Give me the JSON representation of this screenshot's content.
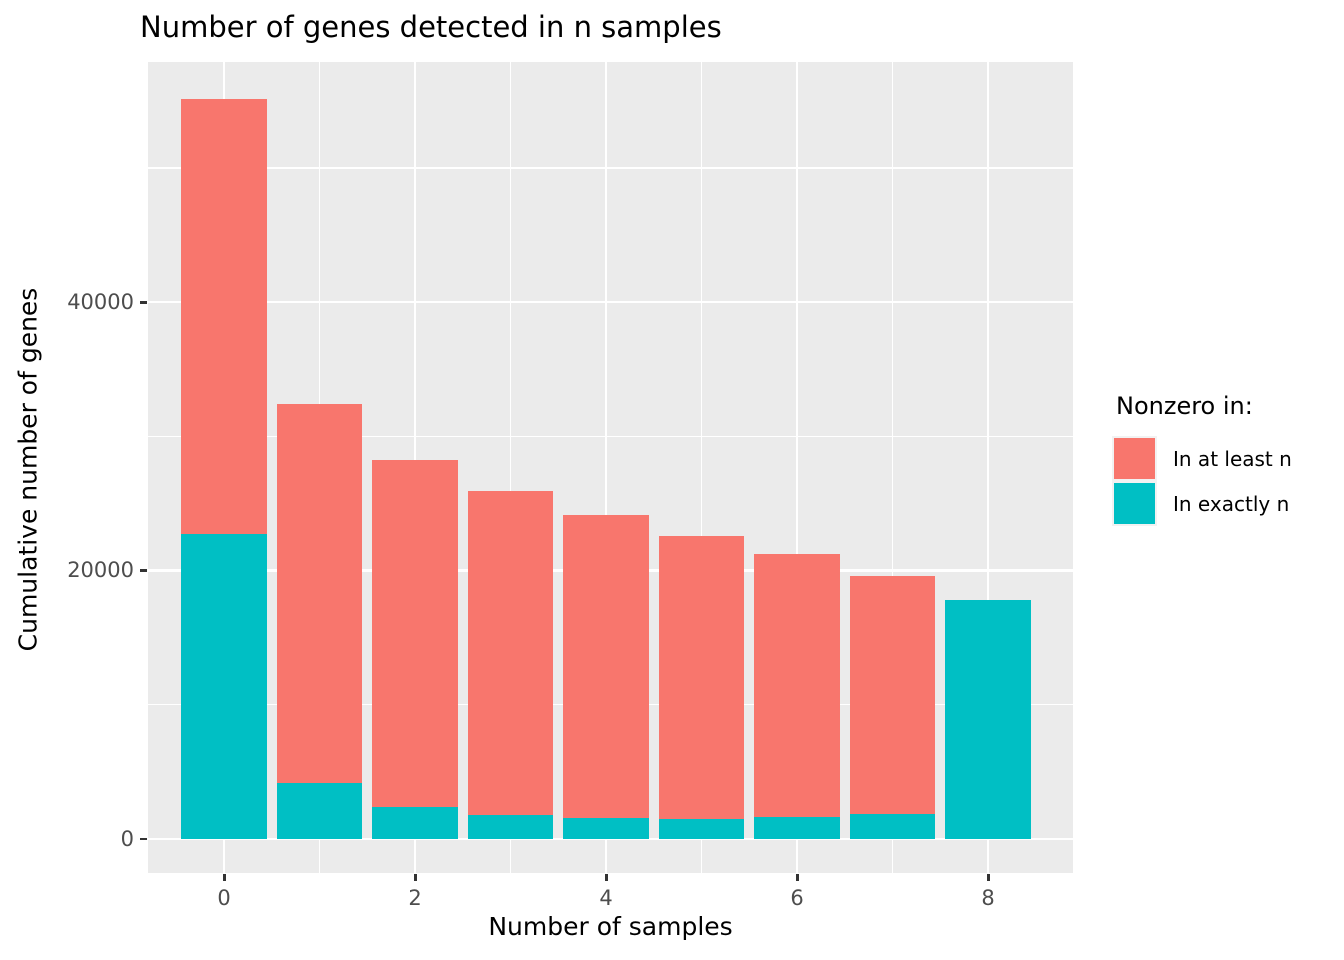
{
  "title": "Number of genes detected in n samples",
  "x_axis": {
    "label": "Number of samples",
    "tick_labels": [
      "0",
      "2",
      "4",
      "6",
      "8"
    ]
  },
  "y_axis": {
    "label": "Cumulative number of genes",
    "tick_labels": [
      "0",
      "20000",
      "40000"
    ]
  },
  "legend": {
    "title": "Nonzero in:",
    "items": [
      {
        "label": "In at least n",
        "color": "#F8766D"
      },
      {
        "label": "In exactly n",
        "color": "#00BFC4"
      }
    ]
  },
  "colors": {
    "at_least": "#F8766D",
    "exactly": "#00BFC4",
    "panel_background": "#EBEBEB",
    "gridline": "#FFFFFF",
    "tick_text": "#4D4D4D",
    "axis_text": "#000000"
  },
  "chart_data": {
    "type": "bar",
    "mode": "overlay",
    "title": "Number of genes detected in n samples",
    "xlabel": "Number of samples",
    "ylabel": "Cumulative number of genes",
    "x": [
      0,
      1,
      2,
      3,
      4,
      5,
      6,
      7,
      8
    ],
    "series": [
      {
        "name": "In at least n",
        "color": "#F8766D",
        "values": [
          55150,
          32400,
          28250,
          25900,
          24100,
          22600,
          21200,
          19600,
          17800
        ]
      },
      {
        "name": "In exactly n",
        "color": "#00BFC4",
        "values": [
          22750,
          4150,
          2350,
          1800,
          1550,
          1450,
          1600,
          1850,
          17800
        ]
      }
    ],
    "bar_width": 0.9,
    "x_ticks": [
      0,
      2,
      4,
      6,
      8
    ],
    "x_minor_ticks": [
      1,
      3,
      5,
      7
    ],
    "y_ticks": [
      0,
      20000,
      40000
    ],
    "y_minor_ticks": [
      10000,
      30000,
      50000
    ],
    "xlim": [
      -0.9,
      8.9
    ],
    "ylim": [
      0,
      58000
    ],
    "grid": true,
    "legend_title": "Nonzero in:",
    "legend_position": "right"
  }
}
